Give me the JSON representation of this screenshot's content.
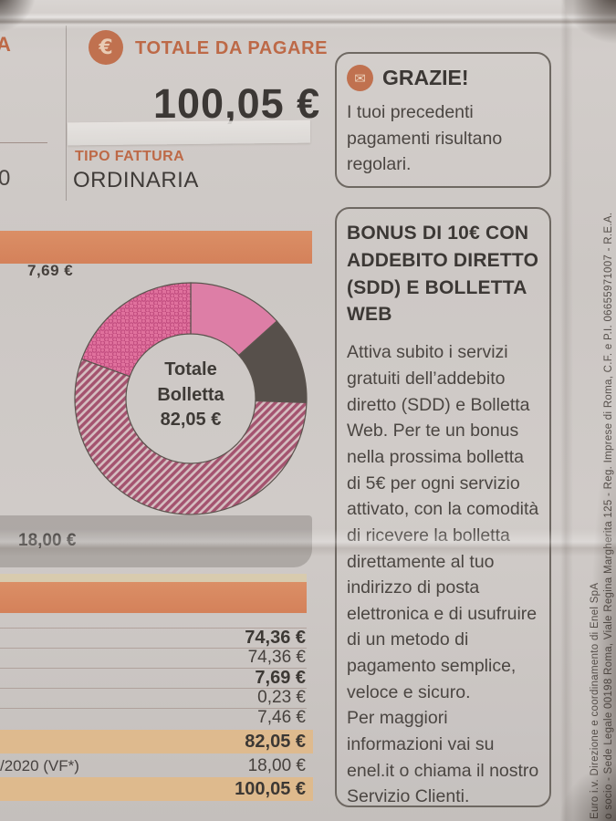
{
  "header": {
    "euro_icon": "€",
    "totale_label": "TOTALE DA PAGARE",
    "amount": "100,05 €",
    "tipo_fattura_label": "TIPO FATTURA",
    "tipo_fattura_value": "ORDINARIA"
  },
  "left_margin": {
    "cut_letter": "A",
    "cut_number": "0"
  },
  "grazie_box": {
    "envelope_icon": "✉",
    "title": "GRAZIE!",
    "body": "I tuoi precedenti pagamenti risultano regolari."
  },
  "bonus_box": {
    "title": "BONUS DI 10€ CON ADDEBITO DIRETTO (SDD) E BOLLETTA WEB",
    "body_1": "Attiva subito i servizi gratuiti dell’addebito diretto (SDD) e Bolletta Web. Per te un bonus nella prossima bolletta di 5€ per ogni servizio attivato, con la comodità di ricevere la bolletta direttamente al tuo indirizzo di posta elettronica e di usufruire di un metodo di pagamento semplice, veloce e sicuro.",
    "body_2": "Per maggiori informazioni vai su enel.it o chiama il nostro Servizio Clienti."
  },
  "chart_data": {
    "type": "pie",
    "variant": "donut",
    "title": "Totale Bolletta",
    "total_value": "82,05 €",
    "center_label": [
      "Totale",
      "Bolletta",
      "82,05 €"
    ],
    "callout_label": "7,69 €",
    "outer_radius": 127,
    "inner_radius": 71,
    "outline_color": "#5b544e",
    "slices": [
      {
        "name": "solid-pink",
        "start_deg": 0,
        "end_deg": 48,
        "pattern": "solid",
        "color": "#dd7ea6"
      },
      {
        "name": "dark-gray",
        "start_deg": 48,
        "end_deg": 92,
        "pattern": "solid",
        "color": "#57504b"
      },
      {
        "name": "striped-rose",
        "start_deg": 92,
        "end_deg": 290,
        "pattern": "hatch",
        "color": "#a4536f",
        "color2": "#d5bec1"
      },
      {
        "name": "honeycomb-pink",
        "start_deg": 290,
        "end_deg": 360,
        "pattern": "hex",
        "color": "#e0719d",
        "color2": "#bf4a7d"
      }
    ]
  },
  "bars": {
    "gray_bar_value": "18,00 €"
  },
  "amounts_table": {
    "rows": [
      {
        "value": "74,36 €",
        "bold": true,
        "highlight": false,
        "label": ""
      },
      {
        "value": "74,36 €",
        "bold": false,
        "highlight": false,
        "label": ""
      },
      {
        "value": "7,69 €",
        "bold": true,
        "highlight": false,
        "label": ""
      },
      {
        "value": "0,23 €",
        "bold": false,
        "highlight": false,
        "label": ""
      },
      {
        "value": "7,46 €",
        "bold": false,
        "highlight": false,
        "label": ""
      },
      {
        "value": "82,05 €",
        "bold": true,
        "highlight": true,
        "label": ""
      },
      {
        "value": "18,00 €",
        "bold": false,
        "highlight": false,
        "label": "/2020 (VF*)"
      },
      {
        "value": "100,05 €",
        "bold": true,
        "highlight": true,
        "label": ""
      }
    ]
  },
  "margin_text": {
    "line_outer": "o socio - Sede Legale 00198 Roma, Viale Regina Margherita 125 - Reg. Imprese di Roma, C.F. e P.I. 06655971007 - R.E.A.",
    "line_inner": "Euro i.v. Direzione e coordinamento di Enel SpA"
  },
  "colors": {
    "accent_orange": "#bd6947",
    "badge_orange": "#c0714f",
    "bar_orange": "#d4815a",
    "highlight_row": "#e2b885",
    "gray_bar": "#a8a4a0",
    "text_dark": "#3c3835",
    "paper": "#cfcac7"
  }
}
